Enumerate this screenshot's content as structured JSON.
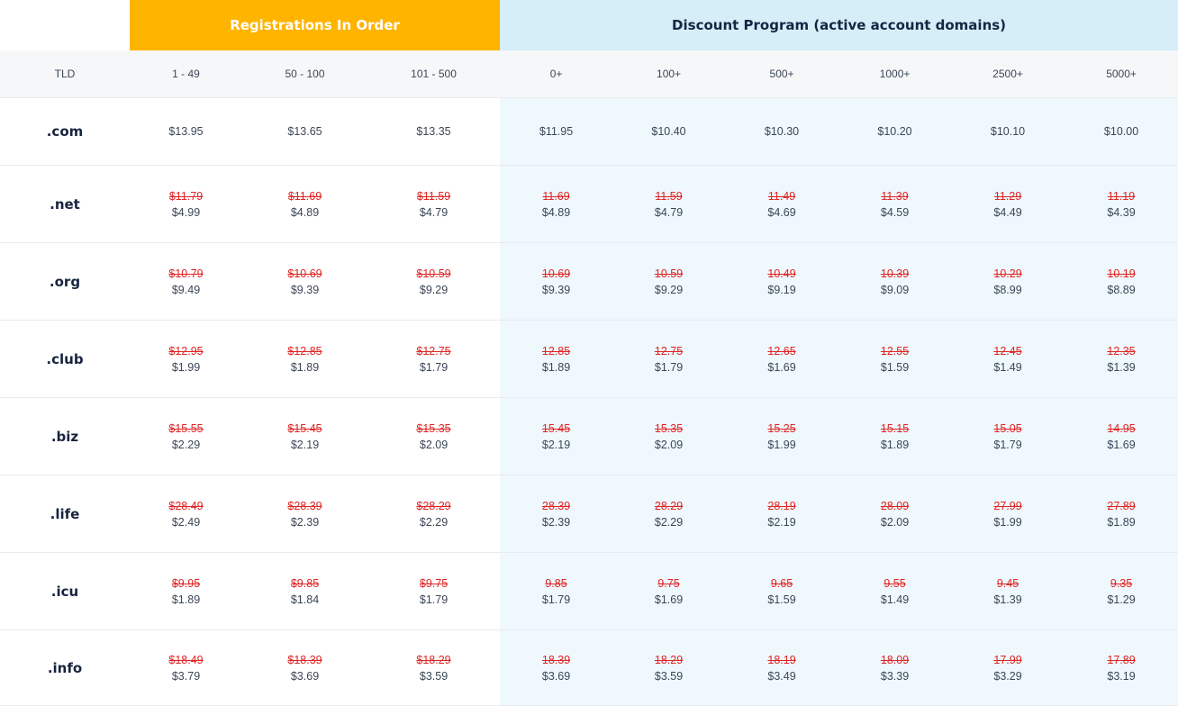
{
  "groups": {
    "registrations": "Registrations In Order",
    "discount": "Discount Program (active account domains)"
  },
  "columns": [
    "TLD",
    "1 - 49",
    "50 - 100",
    "101 - 500",
    "0+",
    "100+",
    "500+",
    "1000+",
    "2500+",
    "5000+"
  ],
  "rows": [
    {
      "tld": ".com",
      "prices": [
        {
          "old": null,
          "new": "$13.95"
        },
        {
          "old": null,
          "new": "$13.65"
        },
        {
          "old": null,
          "new": "$13.35"
        },
        {
          "old": null,
          "new": "$11.95"
        },
        {
          "old": null,
          "new": "$10.40"
        },
        {
          "old": null,
          "new": "$10.30"
        },
        {
          "old": null,
          "new": "$10.20"
        },
        {
          "old": null,
          "new": "$10.10"
        },
        {
          "old": null,
          "new": "$10.00"
        }
      ]
    },
    {
      "tld": ".net",
      "prices": [
        {
          "old": "$11.79",
          "new": "$4.99"
        },
        {
          "old": "$11.69",
          "new": "$4.89"
        },
        {
          "old": "$11.59",
          "new": "$4.79"
        },
        {
          "old": "11.69",
          "new": "$4.89"
        },
        {
          "old": "11.59",
          "new": "$4.79"
        },
        {
          "old": "11.49",
          "new": "$4.69"
        },
        {
          "old": "11.39",
          "new": "$4.59"
        },
        {
          "old": "11.29",
          "new": "$4.49"
        },
        {
          "old": "11.19",
          "new": "$4.39"
        }
      ]
    },
    {
      "tld": ".org",
      "prices": [
        {
          "old": "$10.79",
          "new": "$9.49"
        },
        {
          "old": "$10.69",
          "new": "$9.39"
        },
        {
          "old": "$10.59",
          "new": "$9.29"
        },
        {
          "old": "10.69",
          "new": "$9.39"
        },
        {
          "old": "10.59",
          "new": "$9.29"
        },
        {
          "old": "10.49",
          "new": "$9.19"
        },
        {
          "old": "10.39",
          "new": "$9.09"
        },
        {
          "old": "10.29",
          "new": "$8.99"
        },
        {
          "old": "10.19",
          "new": "$8.89"
        }
      ]
    },
    {
      "tld": ".club",
      "prices": [
        {
          "old": "$12.95",
          "new": "$1.99"
        },
        {
          "old": "$12.85",
          "new": "$1.89"
        },
        {
          "old": "$12.75",
          "new": "$1.79"
        },
        {
          "old": "12.85",
          "new": "$1.89"
        },
        {
          "old": "12.75",
          "new": "$1.79"
        },
        {
          "old": "12.65",
          "new": "$1.69"
        },
        {
          "old": "12.55",
          "new": "$1.59"
        },
        {
          "old": "12.45",
          "new": "$1.49"
        },
        {
          "old": "12.35",
          "new": "$1.39"
        }
      ]
    },
    {
      "tld": ".biz",
      "prices": [
        {
          "old": "$15.55",
          "new": "$2.29"
        },
        {
          "old": "$15.45",
          "new": "$2.19"
        },
        {
          "old": "$15.35",
          "new": "$2.09"
        },
        {
          "old": "15.45",
          "new": "$2.19"
        },
        {
          "old": "15.35",
          "new": "$2.09"
        },
        {
          "old": "15.25",
          "new": "$1.99"
        },
        {
          "old": "15.15",
          "new": "$1.89"
        },
        {
          "old": "15.05",
          "new": "$1.79"
        },
        {
          "old": "14.95",
          "new": "$1.69"
        }
      ]
    },
    {
      "tld": ".life",
      "prices": [
        {
          "old": "$28.49",
          "new": "$2.49"
        },
        {
          "old": "$28.39",
          "new": "$2.39"
        },
        {
          "old": "$28.29",
          "new": "$2.29"
        },
        {
          "old": "28.39",
          "new": "$2.39"
        },
        {
          "old": "28.29",
          "new": "$2.29"
        },
        {
          "old": "28.19",
          "new": "$2.19"
        },
        {
          "old": "28.09",
          "new": "$2.09"
        },
        {
          "old": "27.99",
          "new": "$1.99"
        },
        {
          "old": "27.89",
          "new": "$1.89"
        }
      ]
    },
    {
      "tld": ".icu",
      "prices": [
        {
          "old": "$9.95",
          "new": "$1.89"
        },
        {
          "old": "$9.85",
          "new": "$1.84"
        },
        {
          "old": "$9.75",
          "new": "$1.79"
        },
        {
          "old": "9.85",
          "new": "$1.79"
        },
        {
          "old": "9.75",
          "new": "$1.69"
        },
        {
          "old": "9.65",
          "new": "$1.59"
        },
        {
          "old": "9.55",
          "new": "$1.49"
        },
        {
          "old": "9.45",
          "new": "$1.39"
        },
        {
          "old": "9.35",
          "new": "$1.29"
        }
      ]
    },
    {
      "tld": ".info",
      "prices": [
        {
          "old": "$18.49",
          "new": "$3.79"
        },
        {
          "old": "$18.39",
          "new": "$3.69"
        },
        {
          "old": "$18.29",
          "new": "$3.59"
        },
        {
          "old": "18.39",
          "new": "$3.69"
        },
        {
          "old": "18.29",
          "new": "$3.59"
        },
        {
          "old": "18.19",
          "new": "$3.49"
        },
        {
          "old": "18.09",
          "new": "$3.39"
        },
        {
          "old": "17.99",
          "new": "$3.29"
        },
        {
          "old": "17.89",
          "new": "$3.19"
        }
      ]
    }
  ],
  "colors": {
    "registrations_header": "#ffb400",
    "discount_header": "#d6eef8",
    "discount_cell": "#eff8fd",
    "old_price": "#e02424"
  }
}
